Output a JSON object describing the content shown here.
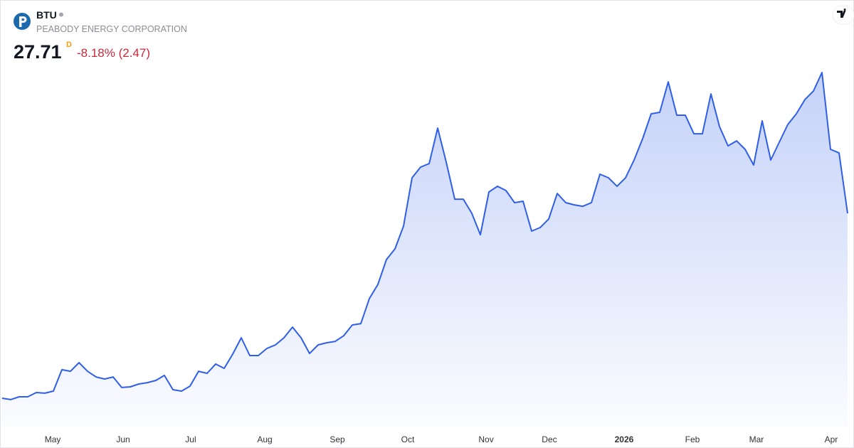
{
  "header": {
    "symbol": "BTU",
    "name": "PEABODY ENERGY CORPORATION",
    "price": 27.71,
    "interval": "D",
    "change": "-8.18% (2.47)"
  },
  "chart_data": {
    "type": "area",
    "color": "#2f5fe8",
    "values": [
      11.8,
      11.68,
      11.92,
      11.92,
      12.29,
      12.23,
      12.41,
      14.25,
      14.12,
      14.86,
      14.12,
      13.63,
      13.45,
      13.63,
      12.72,
      12.78,
      13.02,
      13.14,
      13.33,
      13.76,
      12.53,
      12.41,
      12.84,
      14.12,
      13.94,
      14.74,
      14.37,
      15.59,
      17.0,
      15.47,
      15.47,
      16.08,
      16.39,
      17.0,
      17.92,
      17.0,
      15.65,
      16.39,
      16.57,
      16.69,
      17.18,
      18.1,
      18.22,
      20.37,
      21.59,
      23.73,
      24.65,
      26.61,
      30.77,
      31.69,
      31.99,
      35.05,
      32.12,
      28.93,
      28.93,
      27.71,
      25.87,
      29.55,
      30.04,
      29.67,
      28.63,
      28.75,
      26.18,
      26.49,
      27.22,
      29.42,
      28.63,
      28.44,
      28.32,
      28.63,
      31.08,
      30.77,
      30.04,
      30.77,
      32.3,
      34.14,
      36.28,
      36.4,
      39.03,
      36.16,
      36.16,
      34.56,
      34.56,
      37.99,
      35.18,
      33.52,
      33.95,
      33.22,
      31.87,
      35.67,
      32.3,
      33.83,
      35.36,
      36.28,
      37.5,
      38.24,
      39.83,
      33.22,
      32.91,
      27.71
    ],
    "xlim": [
      0,
      99
    ],
    "ylim": [
      9.35,
      40.87
    ],
    "xticks": [
      {
        "value": 5.92,
        "label": "May"
      },
      {
        "value": 14.17,
        "label": "Jun"
      },
      {
        "value": 22.08,
        "label": "Jul"
      },
      {
        "value": 30.75,
        "label": "Aug"
      },
      {
        "value": 39.25,
        "label": "Sep"
      },
      {
        "value": 47.5,
        "label": "Oct"
      },
      {
        "value": 56.67,
        "label": "Nov"
      },
      {
        "value": 64.08,
        "label": "Dec"
      },
      {
        "value": 72.83,
        "label": "2026"
      },
      {
        "value": 80.83,
        "label": "Feb"
      },
      {
        "value": 88.33,
        "label": "Mar"
      },
      {
        "value": 97.08,
        "label": "Apr"
      }
    ]
  }
}
